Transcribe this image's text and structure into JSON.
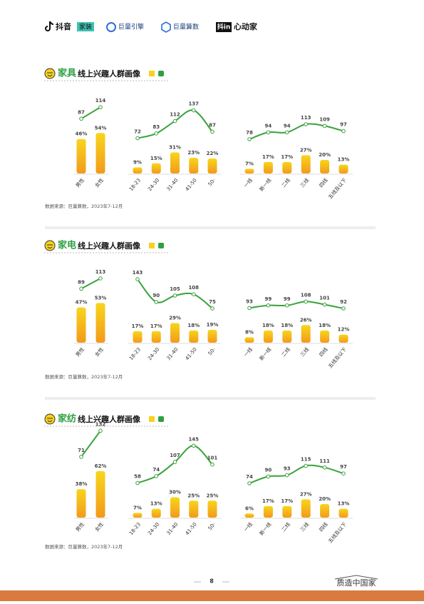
{
  "header": {
    "logos": [
      "抖音",
      "家装",
      "巨量引擎",
      "巨量算数",
      "抖in",
      "心动家"
    ]
  },
  "sections": [
    {
      "highlight": "家具",
      "title": "线上兴趣人群画像",
      "source": "数据来源：巨量算数，2023年7-12月"
    },
    {
      "highlight": "家电",
      "title": "线上兴趣人群画像",
      "source": "数据来源：巨量算数，2023年7-12月"
    },
    {
      "highlight": "家纺",
      "title": "线上兴趣人群画像",
      "source": "数据来源：巨量算数，2023年7-12月"
    }
  ],
  "chart_data": [
    {
      "type": "bar",
      "categories": [
        "男性",
        "女性"
      ],
      "series": [
        {
          "color": "#f39c1c",
          "values": [
            46,
            54
          ],
          "value_labels": [
            "46%",
            "54%"
          ]
        },
        {
          "type": "line",
          "color": "#3aa23c",
          "values": [
            87,
            114
          ]
        }
      ]
    },
    {
      "type": "bar",
      "categories": [
        "18-23",
        "24-30",
        "31-40",
        "41-50",
        "50-"
      ],
      "series": [
        {
          "color": "#f39c1c",
          "values": [
            9,
            15,
            31,
            23,
            22
          ],
          "value_labels": [
            "9%",
            "15%",
            "31%",
            "23%",
            "22%"
          ]
        },
        {
          "type": "line",
          "color": "#3aa23c",
          "values": [
            72,
            83,
            112,
            137,
            87
          ]
        }
      ]
    },
    {
      "type": "bar",
      "categories": [
        "一线",
        "新一线",
        "二线",
        "三线",
        "四线",
        "五线及以下"
      ],
      "series": [
        {
          "color": "#f39c1c",
          "values": [
            7,
            17,
            17,
            27,
            20,
            13
          ],
          "value_labels": [
            "7%",
            "17%",
            "17%",
            "27%",
            "20%",
            "13%"
          ]
        },
        {
          "type": "line",
          "color": "#3aa23c",
          "values": [
            78,
            94,
            94,
            113,
            109,
            97
          ]
        }
      ]
    },
    {
      "type": "bar",
      "categories": [
        "男性",
        "女性"
      ],
      "series": [
        {
          "color": "#f39c1c",
          "values": [
            47,
            53
          ],
          "value_labels": [
            "47%",
            "53%"
          ]
        },
        {
          "type": "line",
          "color": "#3aa23c",
          "values": [
            89,
            113
          ]
        }
      ]
    },
    {
      "type": "bar",
      "categories": [
        "18-23",
        "24-30",
        "31-40",
        "41-50",
        "50-"
      ],
      "series": [
        {
          "color": "#f39c1c",
          "values": [
            17,
            17,
            29,
            18,
            19
          ],
          "value_labels": [
            "17%",
            "17%",
            "29%",
            "18%",
            "19%"
          ]
        },
        {
          "type": "line",
          "color": "#3aa23c",
          "values": [
            143,
            90,
            105,
            108,
            75
          ]
        }
      ]
    },
    {
      "type": "bar",
      "categories": [
        "一线",
        "新一线",
        "二线",
        "三线",
        "四线",
        "五线及以下"
      ],
      "series": [
        {
          "color": "#f39c1c",
          "values": [
            8,
            18,
            18,
            26,
            18,
            12
          ],
          "value_labels": [
            "8%",
            "18%",
            "18%",
            "26%",
            "18%",
            "12%"
          ]
        },
        {
          "type": "line",
          "color": "#3aa23c",
          "values": [
            93,
            99,
            99,
            108,
            101,
            92
          ]
        }
      ]
    },
    {
      "type": "bar",
      "categories": [
        "男性",
        "女性"
      ],
      "series": [
        {
          "color": "#f39c1c",
          "values": [
            38,
            62
          ],
          "value_labels": [
            "38%",
            "62%"
          ]
        },
        {
          "type": "line",
          "color": "#3aa23c",
          "values": [
            71,
            132
          ]
        }
      ]
    },
    {
      "type": "bar",
      "categories": [
        "18-23",
        "24-30",
        "31-40",
        "41-50",
        "50-"
      ],
      "series": [
        {
          "color": "#f39c1c",
          "values": [
            7,
            13,
            30,
            25,
            25
          ],
          "value_labels": [
            "7%",
            "13%",
            "30%",
            "25%",
            "25%"
          ]
        },
        {
          "type": "line",
          "color": "#3aa23c",
          "values": [
            58,
            74,
            107,
            145,
            101
          ]
        }
      ]
    },
    {
      "type": "bar",
      "categories": [
        "一线",
        "新一线",
        "二线",
        "三线",
        "四线",
        "五线及以下"
      ],
      "series": [
        {
          "color": "#f39c1c",
          "values": [
            6,
            17,
            17,
            27,
            20,
            13
          ],
          "value_labels": [
            "6%",
            "17%",
            "17%",
            "27%",
            "20%",
            "13%"
          ]
        },
        {
          "type": "line",
          "color": "#3aa23c",
          "values": [
            74,
            90,
            93,
            115,
            111,
            97
          ]
        }
      ]
    }
  ],
  "footer": {
    "page": "8",
    "brand": "质造中国家"
  }
}
